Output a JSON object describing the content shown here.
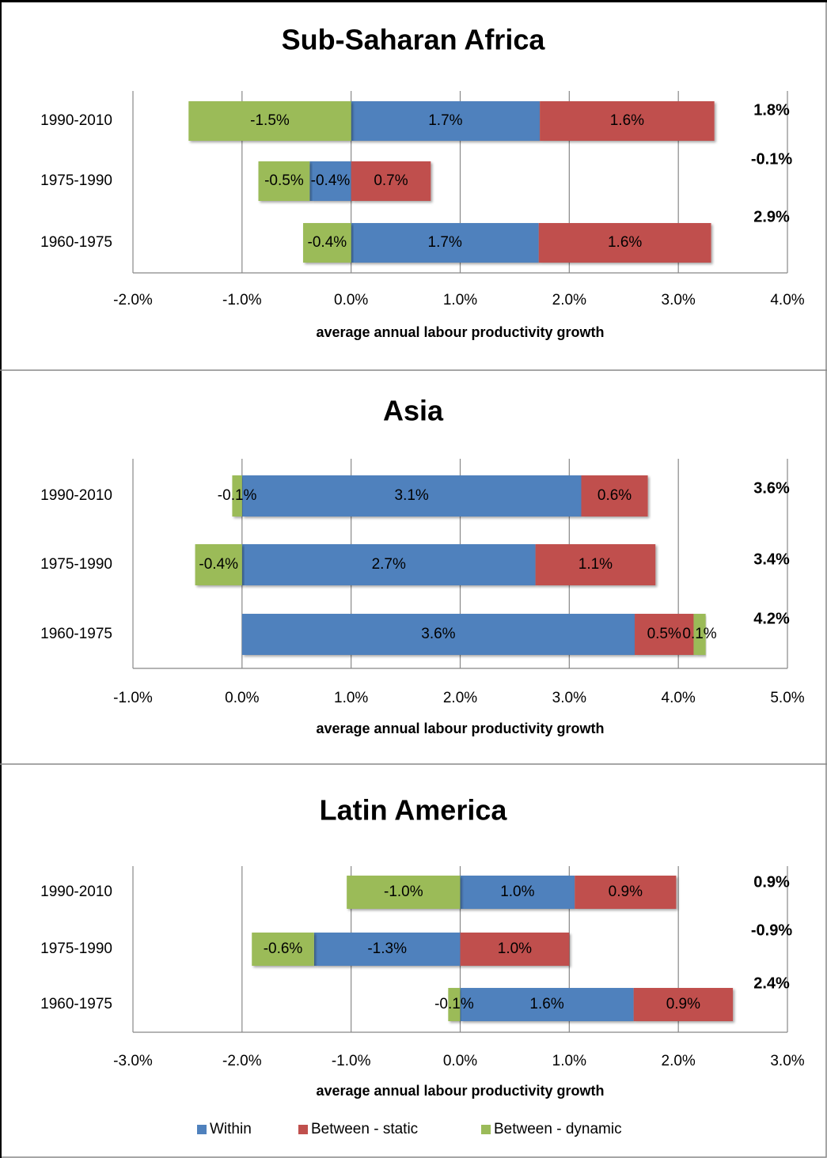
{
  "chart_data": [
    {
      "type": "bar",
      "orientation": "horizontal",
      "stacked": true,
      "title": "Sub-Saharan Africa",
      "categories": [
        "1990-2010",
        "1975-1990",
        "1960-1975"
      ],
      "series": [
        {
          "name": "Within",
          "color": "#4f81bd",
          "values": [
            1.73,
            -0.38,
            1.72
          ],
          "value_labels": [
            "1.7%",
            "-0.4%",
            "1.7%"
          ]
        },
        {
          "name": "Between - static",
          "color": "#c0504d",
          "values": [
            1.6,
            0.73,
            1.58
          ],
          "value_labels": [
            "1.6%",
            "0.7%",
            "1.6%"
          ]
        },
        {
          "name": "Between - dynamic",
          "color": "#9bbb59",
          "values": [
            -1.49,
            -0.47,
            -0.44
          ],
          "value_labels": [
            "-1.5%",
            "-0.5%",
            "-0.4%"
          ]
        }
      ],
      "annotations": [
        "1.8%",
        "-0.1%",
        "2.9%"
      ],
      "xlabel": "average annual labour productivity growth",
      "xlim": [
        -2,
        4
      ],
      "xticks": [
        {
          "value": -2,
          "label": "-2.0%"
        },
        {
          "value": -1,
          "label": "-1.0%"
        },
        {
          "value": 0,
          "label": "0.0%"
        },
        {
          "value": 1,
          "label": "1.0%"
        },
        {
          "value": 2,
          "label": "2.0%"
        },
        {
          "value": 3,
          "label": "3.0%"
        },
        {
          "value": 4,
          "label": "4.0%"
        }
      ],
      "grid": true
    },
    {
      "type": "bar",
      "orientation": "horizontal",
      "stacked": true,
      "title": "Asia",
      "categories": [
        "1990-2010",
        "1975-1990",
        "1960-1975"
      ],
      "series": [
        {
          "name": "Within",
          "color": "#4f81bd",
          "values": [
            3.11,
            2.69,
            3.6
          ],
          "value_labels": [
            "3.1%",
            "2.7%",
            "3.6%"
          ]
        },
        {
          "name": "Between - static",
          "color": "#c0504d",
          "values": [
            0.61,
            1.1,
            0.54
          ],
          "value_labels": [
            "0.6%",
            "1.1%",
            "0.5%"
          ]
        },
        {
          "name": "Between - dynamic",
          "color": "#9bbb59",
          "values": [
            -0.09,
            -0.43,
            0.11
          ],
          "value_labels": [
            "-0.1%",
            "-0.4%",
            "0.1%"
          ]
        }
      ],
      "annotations": [
        "3.6%",
        "3.4%",
        "4.2%"
      ],
      "xlabel": "average annual labour productivity growth",
      "xlim": [
        -1,
        5
      ],
      "xticks": [
        {
          "value": -1,
          "label": "-1.0%"
        },
        {
          "value": 0,
          "label": "0.0%"
        },
        {
          "value": 1,
          "label": "1.0%"
        },
        {
          "value": 2,
          "label": "2.0%"
        },
        {
          "value": 3,
          "label": "3.0%"
        },
        {
          "value": 4,
          "label": "4.0%"
        },
        {
          "value": 5,
          "label": "5.0%"
        }
      ],
      "grid": true
    },
    {
      "type": "bar",
      "orientation": "horizontal",
      "stacked": true,
      "title": "Latin America",
      "categories": [
        "1990-2010",
        "1975-1990",
        "1960-1975"
      ],
      "series": [
        {
          "name": "Within",
          "color": "#4f81bd",
          "values": [
            1.05,
            -1.34,
            1.59
          ],
          "value_labels": [
            "1.0%",
            "-1.3%",
            "1.6%"
          ]
        },
        {
          "name": "Between - static",
          "color": "#c0504d",
          "values": [
            0.93,
            1.0,
            0.91
          ],
          "value_labels": [
            "0.9%",
            "1.0%",
            "0.9%"
          ]
        },
        {
          "name": "Between - dynamic",
          "color": "#9bbb59",
          "values": [
            -1.04,
            -0.57,
            -0.11
          ],
          "value_labels": [
            "-1.0%",
            "-0.6%",
            "-0.1%"
          ]
        }
      ],
      "annotations": [
        "0.9%",
        "-0.9%",
        "2.4%"
      ],
      "xlabel": "average annual labour productivity growth",
      "xlim": [
        -3,
        3
      ],
      "xticks": [
        {
          "value": -3,
          "label": "-3.0%"
        },
        {
          "value": -2,
          "label": "-2.0%"
        },
        {
          "value": -1,
          "label": "-1.0%"
        },
        {
          "value": 0,
          "label": "0.0%"
        },
        {
          "value": 1,
          "label": "1.0%"
        },
        {
          "value": 2,
          "label": "2.0%"
        },
        {
          "value": 3,
          "label": "3.0%"
        }
      ],
      "grid": true,
      "legend": "bottom"
    }
  ]
}
